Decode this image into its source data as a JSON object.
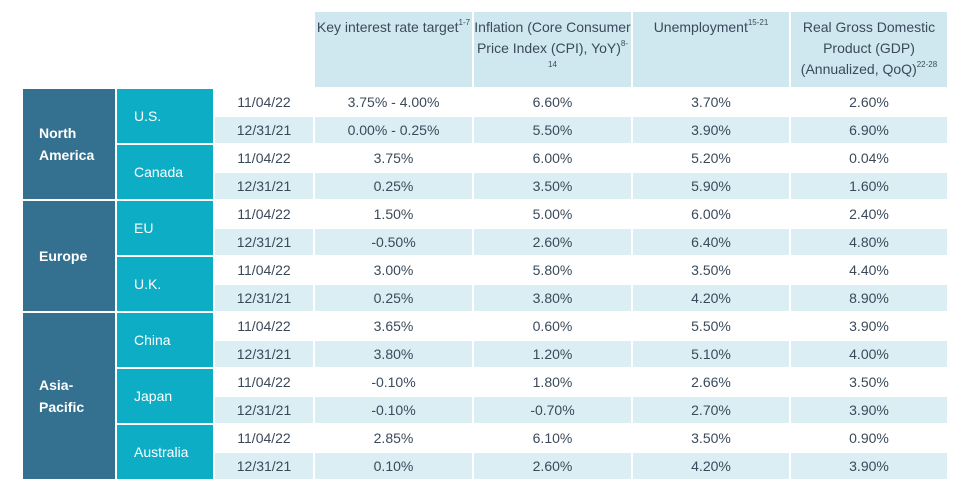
{
  "headers": [
    {
      "text": "Key interest rate target",
      "sup": "1-7"
    },
    {
      "text": "Inflation (Core Consumer Price Index (CPI), YoY)",
      "sup": "8-14"
    },
    {
      "text": "Unemployment",
      "sup": "15-21"
    },
    {
      "text": "Real Gross Domestic Product (GDP) (Annualized, QoQ)",
      "sup": "22-28"
    }
  ],
  "regions": [
    {
      "name": "North America",
      "countries": [
        {
          "name": "U.S.",
          "rows": [
            {
              "date": "11/04/22",
              "values": [
                "3.75% - 4.00%",
                "6.60%",
                "3.70%",
                "2.60%"
              ]
            },
            {
              "date": "12/31/21",
              "values": [
                "0.00% - 0.25%",
                "5.50%",
                "3.90%",
                "6.90%"
              ]
            }
          ]
        },
        {
          "name": "Canada",
          "rows": [
            {
              "date": "11/04/22",
              "values": [
                "3.75%",
                "6.00%",
                "5.20%",
                "0.04%"
              ]
            },
            {
              "date": "12/31/21",
              "values": [
                "0.25%",
                "3.50%",
                "5.90%",
                "1.60%"
              ]
            }
          ]
        }
      ]
    },
    {
      "name": "Europe",
      "countries": [
        {
          "name": "EU",
          "rows": [
            {
              "date": "11/04/22",
              "values": [
                "1.50%",
                "5.00%",
                "6.00%",
                "2.40%"
              ]
            },
            {
              "date": "12/31/21",
              "values": [
                "-0.50%",
                "2.60%",
                "6.40%",
                "4.80%"
              ]
            }
          ]
        },
        {
          "name": "U.K.",
          "rows": [
            {
              "date": "11/04/22",
              "values": [
                "3.00%",
                "5.80%",
                "3.50%",
                "4.40%"
              ]
            },
            {
              "date": "12/31/21",
              "values": [
                "0.25%",
                "3.80%",
                "4.20%",
                "8.90%"
              ]
            }
          ]
        }
      ]
    },
    {
      "name": "Asia-Pacific",
      "countries": [
        {
          "name": "China",
          "rows": [
            {
              "date": "11/04/22",
              "values": [
                "3.65%",
                "0.60%",
                "5.50%",
                "3.90%"
              ]
            },
            {
              "date": "12/31/21",
              "values": [
                "3.80%",
                "1.20%",
                "5.10%",
                "4.00%"
              ]
            }
          ]
        },
        {
          "name": "Japan",
          "rows": [
            {
              "date": "11/04/22",
              "values": [
                "-0.10%",
                "1.80%",
                "2.66%",
                "3.50%"
              ]
            },
            {
              "date": "12/31/21",
              "values": [
                "-0.10%",
                "-0.70%",
                "2.70%",
                "3.90%"
              ]
            }
          ]
        },
        {
          "name": "Australia",
          "rows": [
            {
              "date": "11/04/22",
              "values": [
                "2.85%",
                "6.10%",
                "3.50%",
                "0.90%"
              ]
            },
            {
              "date": "12/31/21",
              "values": [
                "0.10%",
                "2.60%",
                "4.20%",
                "3.90%"
              ]
            }
          ]
        }
      ]
    }
  ]
}
